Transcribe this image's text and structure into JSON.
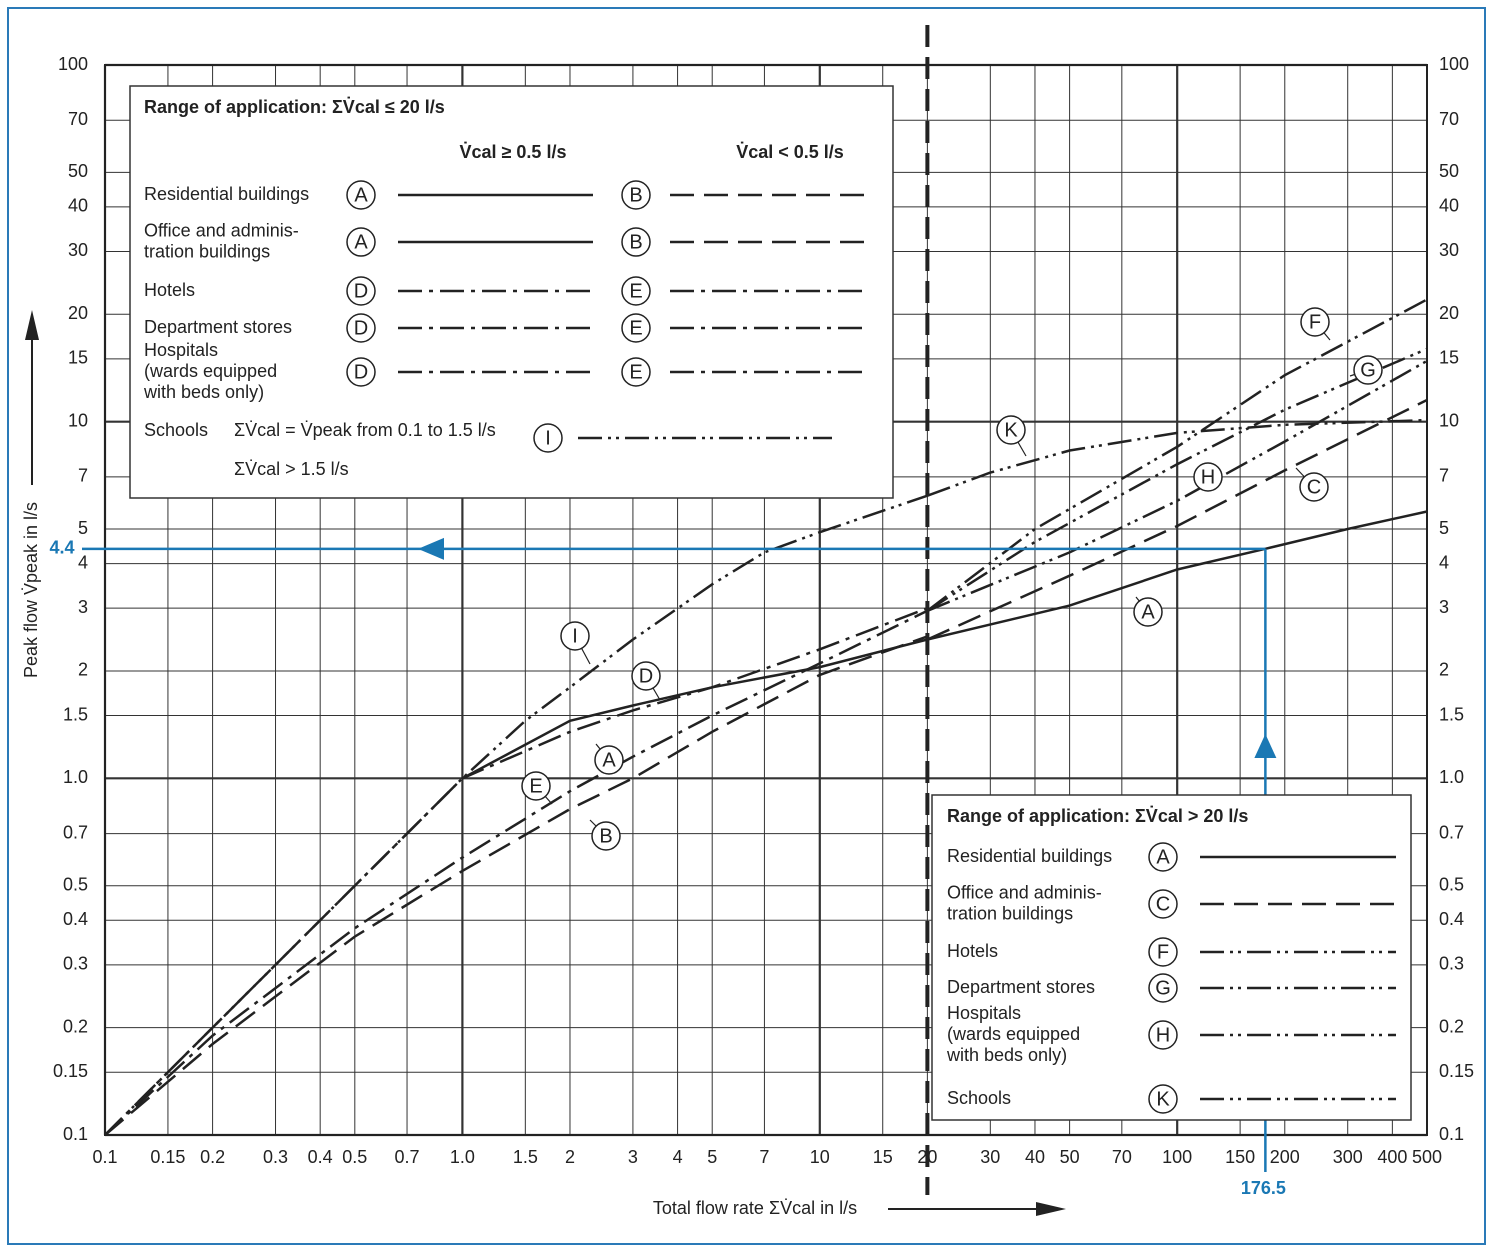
{
  "chart_data": {
    "type": "line",
    "xscale": "log",
    "yscale": "log",
    "grid": true,
    "xlabel": "Total flow rate ΣV̇cal  in l/s",
    "ylabel": "Peak flow V̇peak in l/s",
    "xlim": [
      0.1,
      500
    ],
    "ylim": [
      0.1,
      100
    ],
    "xticks": [
      0.1,
      0.15,
      0.2,
      0.3,
      0.4,
      0.5,
      0.7,
      {
        "value": 1,
        "label": "1.0"
      },
      1.5,
      2,
      3,
      4,
      5,
      7,
      10,
      15,
      20,
      30,
      40,
      50,
      70,
      100,
      150,
      200,
      300,
      400,
      500
    ],
    "yticks": [
      0.1,
      0.15,
      0.2,
      0.3,
      0.4,
      0.5,
      0.7,
      {
        "value": 1,
        "label": "1.0"
      },
      1.5,
      2,
      3,
      4,
      5,
      7,
      10,
      15,
      20,
      30,
      40,
      50,
      70,
      100
    ],
    "threshold_x": 20,
    "series": [
      {
        "name": "A",
        "color": "#222222",
        "style": "solid",
        "x": [
          1,
          2,
          3,
          5,
          10,
          20,
          50,
          100,
          176.5,
          300,
          500
        ],
        "values": [
          1,
          1.45,
          1.6,
          1.8,
          2.05,
          2.45,
          3.05,
          3.85,
          4.4,
          5,
          5.6
        ]
      },
      {
        "name": "B",
        "color": "#222222",
        "style": "dashed",
        "x": [
          0.1,
          0.2,
          0.5,
          1,
          2,
          3,
          5,
          10,
          20
        ],
        "values": [
          0.1,
          0.18,
          0.36,
          0.55,
          0.82,
          1,
          1.35,
          1.95,
          2.5
        ]
      },
      {
        "name": "C",
        "color": "#222222",
        "style": "dashed",
        "x": [
          20,
          50,
          100,
          200,
          500
        ],
        "values": [
          2.45,
          3.7,
          5.1,
          7.3,
          11.5
        ]
      },
      {
        "name": "D",
        "color": "#222222",
        "style": "dash-dot",
        "x": [
          0.1,
          0.5,
          1,
          2,
          3,
          5,
          10,
          20
        ],
        "values": [
          0.1,
          0.5,
          1,
          1.35,
          1.55,
          1.8,
          2.3,
          3
        ]
      },
      {
        "name": "E",
        "color": "#222222",
        "style": "dash-dot",
        "x": [
          0.1,
          0.2,
          0.5,
          1,
          2,
          3,
          5,
          10,
          20
        ],
        "values": [
          0.1,
          0.19,
          0.38,
          0.6,
          0.92,
          1.15,
          1.5,
          2.1,
          2.95
        ]
      },
      {
        "name": "F",
        "color": "#222222",
        "style": "dash-dot-dot",
        "x": [
          20,
          40,
          100,
          200,
          500
        ],
        "values": [
          2.95,
          5,
          8.5,
          13.5,
          22
        ]
      },
      {
        "name": "G",
        "color": "#222222",
        "style": "dash-dot-dot",
        "x": [
          20,
          40,
          100,
          200,
          500
        ],
        "values": [
          2.95,
          4.6,
          7.6,
          10.8,
          16
        ]
      },
      {
        "name": "H",
        "color": "#222222",
        "style": "dash-dot-dot",
        "x": [
          20,
          50,
          100,
          200,
          500
        ],
        "values": [
          2.95,
          4.3,
          6,
          8.8,
          14.8
        ]
      },
      {
        "name": "I",
        "color": "#222222",
        "style": "dash-dot-dot",
        "x": [
          0.1,
          0.2,
          0.5,
          1,
          1.5,
          2,
          3,
          5,
          7,
          10,
          20
        ],
        "values": [
          0.1,
          0.2,
          0.5,
          1,
          1.45,
          1.8,
          2.45,
          3.5,
          4.3,
          4.9,
          6.2
        ]
      },
      {
        "name": "K",
        "color": "#222222",
        "style": "dash-dot-dot",
        "x": [
          20,
          30,
          50,
          100,
          200,
          500
        ],
        "values": [
          6.2,
          7.2,
          8.3,
          9.3,
          9.8,
          10.1
        ]
      }
    ],
    "example": {
      "x": 176.5,
      "y": 4.4,
      "color": "#1a78b4"
    },
    "legend_low": {
      "title": "Range of application:  ΣV̇cal ≤ 20 l/s",
      "headers": [
        "V̇cal ≥ 0.5 l/s",
        "V̇cal < 0.5 l/s"
      ],
      "rows": [
        {
          "label": [
            "Residential buildings"
          ],
          "keys": [
            "A",
            "B"
          ]
        },
        {
          "label": [
            "Office and adminis-",
            "tration buildings"
          ],
          "keys": [
            "A",
            "B"
          ]
        },
        {
          "label": [
            "Hotels"
          ],
          "keys": [
            "D",
            "E"
          ]
        },
        {
          "label": [
            "Department stores"
          ],
          "keys": [
            "D",
            "E"
          ]
        },
        {
          "label": [
            "Hospitals",
            "(wards equipped",
            "with beds only)"
          ],
          "keys": [
            "D",
            "E"
          ]
        }
      ],
      "schools": {
        "label": "Schools",
        "note": [
          "ΣV̇cal = V̇peak from 0.1  to  1.5 l/s",
          "ΣV̇cal > 1.5 l/s"
        ],
        "key": "I"
      }
    },
    "legend_high": {
      "title": "Range of application:  ΣV̇cal > 20 l/s",
      "rows": [
        {
          "label": [
            "Residential buildings"
          ],
          "key": "A"
        },
        {
          "label": [
            "Office and adminis-",
            "tration buildings"
          ],
          "key": "C"
        },
        {
          "label": [
            "Hotels"
          ],
          "key": "F"
        },
        {
          "label": [
            "Department stores"
          ],
          "key": "G"
        },
        {
          "label": [
            "Hospitals",
            "(wards equipped",
            "with beds only)"
          ],
          "key": "H"
        },
        {
          "label": [
            "Schools"
          ],
          "key": "K"
        }
      ]
    }
  }
}
